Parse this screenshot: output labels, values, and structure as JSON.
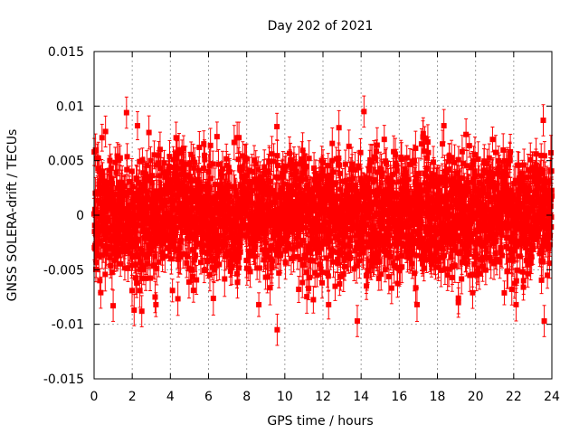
{
  "chart_data": {
    "type": "scatter",
    "title": "Day 202 of 2021",
    "xlabel": "GPS time / hours",
    "ylabel": "GNSS SOLERA-drift / TECUs",
    "xlim": [
      0,
      24
    ],
    "ylim": [
      -0.015,
      0.015
    ],
    "x_ticks": [
      "0",
      "2",
      "4",
      "6",
      "8",
      "10",
      "12",
      "14",
      "16",
      "18",
      "20",
      "22",
      "24"
    ],
    "y_ticks": [
      "-0.015",
      "-0.01",
      "-0.005",
      "0",
      "0.005",
      "0.01",
      "0.015"
    ],
    "grid": true,
    "error_bars": true,
    "marker": "square",
    "color": "#ff0000",
    "approx_point_count": 2880,
    "approx_noise_sd": 0.0028,
    "approx_error_bar_halfwidth": 0.0013,
    "notable_points": [
      {
        "x": 1.7,
        "y": 0.0094
      },
      {
        "x": 14.15,
        "y": 0.0095
      },
      {
        "x": 23.55,
        "y": 0.0087
      },
      {
        "x": 9.6,
        "y": -0.0105
      },
      {
        "x": 13.8,
        "y": -0.0097
      },
      {
        "x": 23.6,
        "y": -0.0097
      },
      {
        "x": 2.1,
        "y": -0.0087
      },
      {
        "x": 2.5,
        "y": -0.0088
      },
      {
        "x": 4.3,
        "y": 0.0071
      },
      {
        "x": 7.5,
        "y": 0.0071
      },
      {
        "x": 19.5,
        "y": 0.0074
      },
      {
        "x": 1.0,
        "y": -0.0083
      },
      {
        "x": 0.35,
        "y": -0.0071
      },
      {
        "x": 3.2,
        "y": -0.0075
      },
      {
        "x": 21.9,
        "y": -0.0068
      },
      {
        "x": 19.1,
        "y": -0.0076
      }
    ]
  }
}
